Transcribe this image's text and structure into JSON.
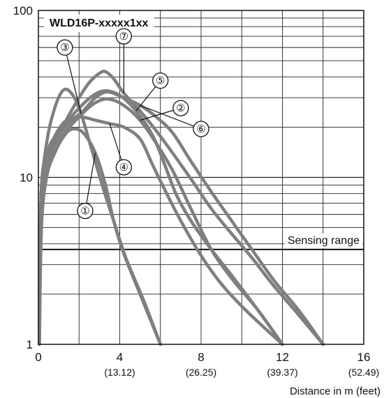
{
  "chart_data": {
    "type": "line",
    "title": "WLD16P-xxxxx1xx",
    "xlabel": "Distance in m (feet)",
    "ylabel": "",
    "xlim": [
      0,
      16
    ],
    "ylim": [
      1,
      100
    ],
    "yscale": "log",
    "grid": true,
    "x_ticks": [
      {
        "value": 0,
        "label": "0",
        "sublabel": ""
      },
      {
        "value": 4,
        "label": "4",
        "sublabel": "(13.12)"
      },
      {
        "value": 8,
        "label": "8",
        "sublabel": "(26.25)"
      },
      {
        "value": 12,
        "label": "12",
        "sublabel": "(39.37)"
      },
      {
        "value": 16,
        "label": "16",
        "sublabel": "(52.49)"
      }
    ],
    "y_ticks": [
      {
        "value": 1,
        "label": "1"
      },
      {
        "value": 10,
        "label": "10"
      },
      {
        "value": 100,
        "label": "100"
      }
    ],
    "threshold": {
      "value": 3.7,
      "label": "Sensing range"
    },
    "line_color": "#7f7f7f",
    "series": [
      {
        "name": "①",
        "label_at": [
          2.3,
          6.3
        ],
        "points": [
          [
            0.05,
            1
          ],
          [
            0.15,
            5
          ],
          [
            0.4,
            10
          ],
          [
            0.8,
            14
          ],
          [
            1.3,
            18
          ],
          [
            1.7,
            19.5
          ],
          [
            2.2,
            18.5
          ],
          [
            2.8,
            14
          ],
          [
            3.3,
            9
          ],
          [
            3.7,
            5.5
          ],
          [
            4.2,
            3.5
          ],
          [
            5,
            2
          ],
          [
            6,
            1
          ]
        ]
      },
      {
        "name": "②",
        "label_at": [
          7,
          26
        ],
        "points": [
          [
            0.05,
            1
          ],
          [
            0.15,
            6
          ],
          [
            0.5,
            13
          ],
          [
            1.2,
            18
          ],
          [
            2,
            23
          ],
          [
            2.7,
            27.5
          ],
          [
            3.4,
            29.5
          ],
          [
            4.2,
            27
          ],
          [
            5,
            22
          ],
          [
            5.8,
            16
          ],
          [
            6.6,
            11
          ],
          [
            7.5,
            6.5
          ],
          [
            8.5,
            3.7
          ],
          [
            9.6,
            2.4
          ],
          [
            10.8,
            1.6
          ],
          [
            12,
            1
          ]
        ]
      },
      {
        "name": "③",
        "label_at": [
          1.3,
          60
        ],
        "points": [
          [
            0.05,
            2
          ],
          [
            0.15,
            8
          ],
          [
            0.4,
            16
          ],
          [
            0.8,
            26
          ],
          [
            1.25,
            33.5
          ],
          [
            1.7,
            31
          ],
          [
            2.1,
            24
          ],
          [
            2.6,
            15
          ],
          [
            3.2,
            8.5
          ],
          [
            3.7,
            5.5
          ],
          [
            4.3,
            3.3
          ],
          [
            5.2,
            1.8
          ],
          [
            6,
            1
          ]
        ]
      },
      {
        "name": "④",
        "label_at": [
          4.2,
          11.5
        ],
        "points": [
          [
            0.05,
            1.3
          ],
          [
            0.15,
            7
          ],
          [
            0.5,
            14
          ],
          [
            1.2,
            21
          ],
          [
            2,
            23
          ],
          [
            2.8,
            22
          ],
          [
            3.5,
            21
          ],
          [
            4.2,
            20
          ],
          [
            5,
            17
          ],
          [
            5.6,
            12
          ],
          [
            6.2,
            8.5
          ],
          [
            7,
            5.5
          ],
          [
            8,
            3.4
          ],
          [
            9,
            2.3
          ],
          [
            10.2,
            1.6
          ],
          [
            12,
            1
          ]
        ]
      },
      {
        "name": "⑤",
        "label_at": [
          6,
          38
        ],
        "points": [
          [
            0.05,
            2
          ],
          [
            0.15,
            9
          ],
          [
            0.5,
            15
          ],
          [
            1.2,
            20
          ],
          [
            2,
            26
          ],
          [
            2.7,
            31
          ],
          [
            3.3,
            33
          ],
          [
            4,
            31
          ],
          [
            4.8,
            25
          ],
          [
            5.6,
            18
          ],
          [
            6.2,
            12
          ],
          [
            6.8,
            7.8
          ],
          [
            7.5,
            5.5
          ],
          [
            8.5,
            3.7
          ],
          [
            9.6,
            2.5
          ],
          [
            10.8,
            1.6
          ],
          [
            12,
            1
          ]
        ]
      },
      {
        "name": "⑥",
        "label_at": [
          8,
          19.5
        ],
        "points": [
          [
            0.05,
            1.3
          ],
          [
            0.15,
            7
          ],
          [
            0.5,
            14
          ],
          [
            1.3,
            20
          ],
          [
            2.2,
            25
          ],
          [
            2.8,
            30
          ],
          [
            3.4,
            32.5
          ],
          [
            4.2,
            30
          ],
          [
            5,
            27
          ],
          [
            5.8,
            23
          ],
          [
            6.6,
            18.5
          ],
          [
            7.5,
            12.5
          ],
          [
            8.5,
            8.2
          ],
          [
            9.5,
            5.5
          ],
          [
            10.5,
            3.7
          ],
          [
            11.6,
            2.4
          ],
          [
            12.8,
            1.6
          ],
          [
            14,
            1
          ]
        ]
      },
      {
        "name": "⑦",
        "label_at": [
          4.2,
          70
        ],
        "points": [
          [
            0.05,
            1.6
          ],
          [
            0.15,
            6
          ],
          [
            0.5,
            12
          ],
          [
            1.2,
            20
          ],
          [
            2,
            30
          ],
          [
            2.5,
            37
          ],
          [
            3,
            42
          ],
          [
            3.3,
            43
          ],
          [
            3.7,
            39
          ],
          [
            4.2,
            32
          ],
          [
            5,
            25
          ],
          [
            5.8,
            19
          ],
          [
            6.6,
            14
          ],
          [
            7.5,
            9.8
          ],
          [
            8.5,
            6.5
          ],
          [
            9.5,
            4.6
          ],
          [
            10.5,
            3.3
          ],
          [
            11.5,
            2.3
          ],
          [
            12.8,
            1.5
          ],
          [
            14,
            1
          ]
        ]
      }
    ]
  }
}
